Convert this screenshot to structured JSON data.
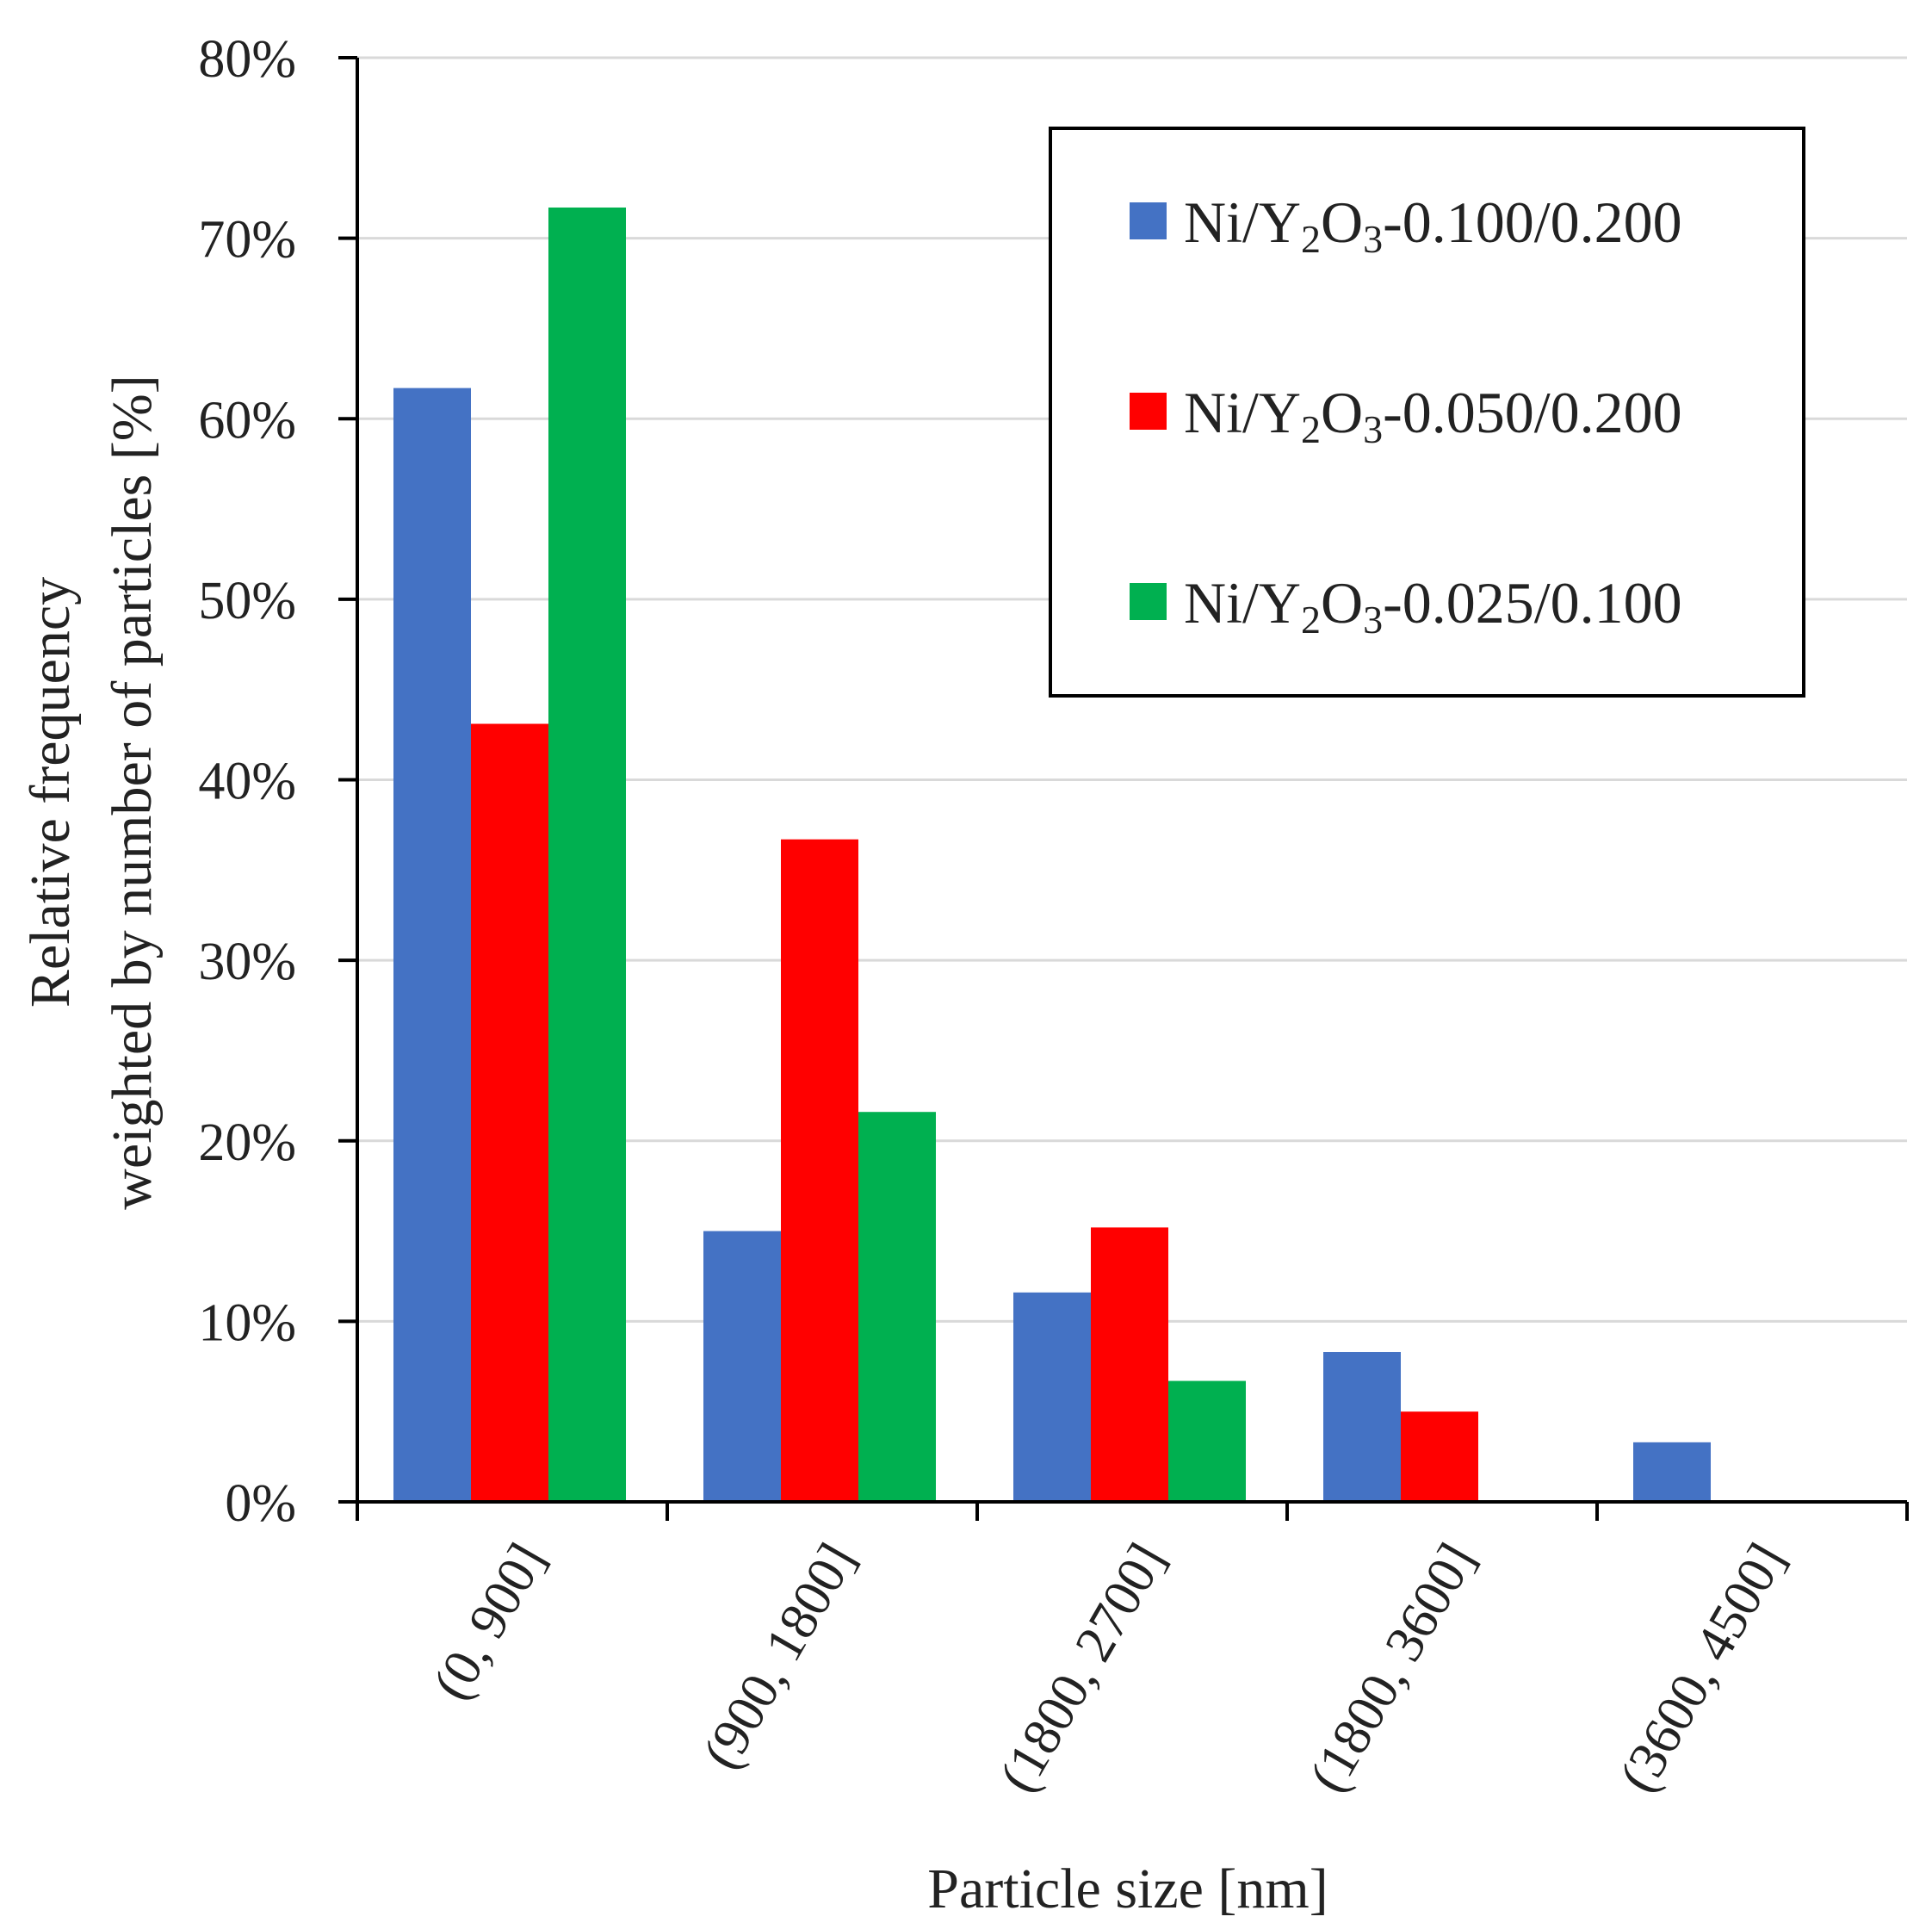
{
  "chart_data": {
    "type": "bar",
    "title": "",
    "xlabel": "Particle size [nm]",
    "ylabel": [
      "Relative frequency",
      "weighted by number of particles [%]"
    ],
    "ylim": [
      0,
      80
    ],
    "yticks": [
      0,
      10,
      20,
      30,
      40,
      50,
      60,
      70,
      80
    ],
    "ytick_labels": [
      "0%",
      "10%",
      "20%",
      "30%",
      "40%",
      "50%",
      "60%",
      "70%",
      "80%"
    ],
    "grid": true,
    "legend_position": "top-right",
    "categories": [
      "(0, 900]",
      "(900, 1800]",
      "(1800, 2700]",
      "(1800, 3600]",
      "(3600, 4500]"
    ],
    "series": [
      {
        "name": "Ni/Y2O3-0.100/0.200",
        "label_parts": [
          {
            "text": "Ni/Y",
            "sub": false
          },
          {
            "text": "2",
            "sub": true
          },
          {
            "text": "O",
            "sub": false
          },
          {
            "text": "3",
            "sub": true
          },
          {
            "text": "-0.100/0.200",
            "sub": false
          }
        ],
        "color": "#4472C4",
        "values": [
          61.7,
          15.0,
          11.6,
          8.3,
          3.3
        ]
      },
      {
        "name": "Ni/Y2O3-0.050/0.200",
        "label_parts": [
          {
            "text": "Ni/Y",
            "sub": false
          },
          {
            "text": "2",
            "sub": true
          },
          {
            "text": "O",
            "sub": false
          },
          {
            "text": "3",
            "sub": true
          },
          {
            "text": "-0.050/0.200",
            "sub": false
          }
        ],
        "color": "#FF0000",
        "values": [
          43.1,
          36.7,
          15.2,
          5.0,
          0
        ]
      },
      {
        "name": "Ni/Y2O3-0.025/0.100",
        "label_parts": [
          {
            "text": "Ni/Y",
            "sub": false
          },
          {
            "text": "2",
            "sub": true
          },
          {
            "text": "O",
            "sub": false
          },
          {
            "text": "3",
            "sub": true
          },
          {
            "text": "-0.025/0.100",
            "sub": false
          }
        ],
        "color": "#00B050",
        "values": [
          71.7,
          21.6,
          6.7,
          0,
          0
        ]
      }
    ]
  }
}
